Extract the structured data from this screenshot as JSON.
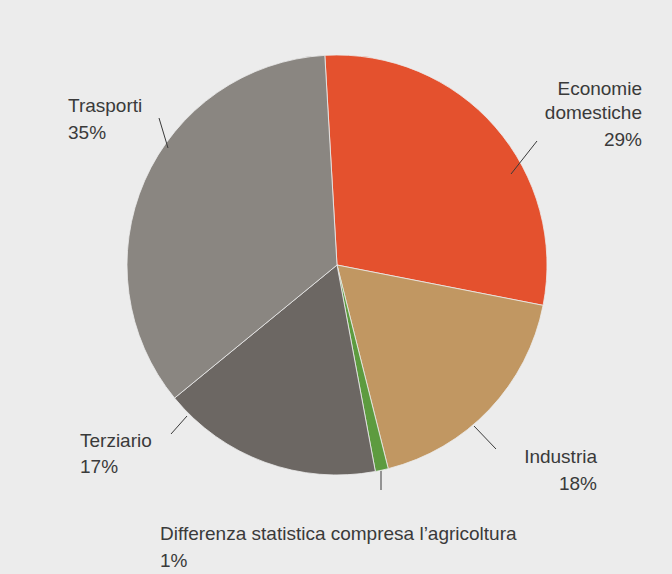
{
  "chart_data": {
    "type": "pie",
    "categories": [
      "Economie domestiche",
      "Industria",
      "Differenza statistica compresa l’agricoltura",
      "Terziario",
      "Trasporti"
    ],
    "values": [
      29,
      18,
      1,
      17,
      35
    ],
    "value_labels": [
      "29%",
      "18%",
      "1%",
      "17%",
      "35%"
    ],
    "colors": [
      "#e4512e",
      "#c19762",
      "#5d9b3f",
      "#6c6763",
      "#8a8681"
    ],
    "data_labels": true
  }
}
